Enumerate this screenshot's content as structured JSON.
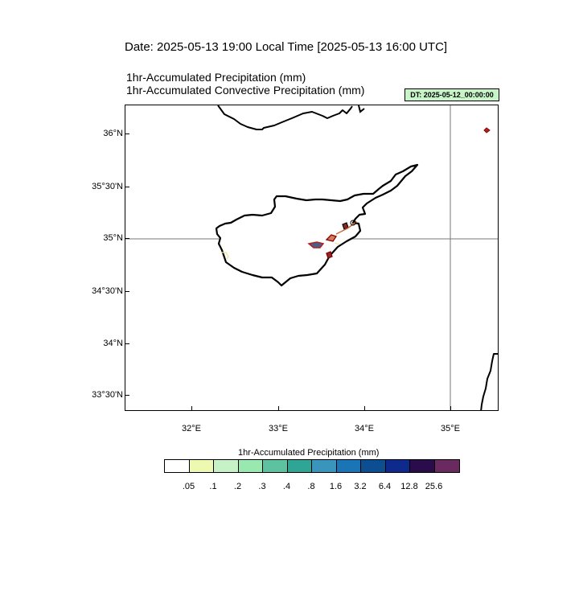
{
  "header": {
    "date_line": "Date: 2025-05-13  19:00 Local Time [2025-05-13  16:00 UTC]",
    "title_1": "1hr-Accumulated Precipitation   (mm)",
    "title_2": "1hr-Accumulated Convective Precipitation   (mm)",
    "dt_badge": "DT: 2025-05-12_00:00:00"
  },
  "map": {
    "lat_labels": [
      "36°N",
      "35°30'N",
      "35°N",
      "34°30'N",
      "34°N",
      "33°30'N"
    ],
    "lon_labels": [
      "32°E",
      "33°E",
      "34°E",
      "35°E"
    ],
    "extent": {
      "lon_min": 31.2,
      "lon_max": 35.55,
      "lat_min": 33.35,
      "lat_max": 36.27
    },
    "gridlines": {
      "lon": 35.0,
      "lat": 35.0
    },
    "coastline_color": "#000000"
  },
  "colorbar": {
    "title": "1hr-Accumulated Precipitation  (mm)",
    "colors": [
      "#ffffff",
      "#edf8b1",
      "#c7f2c7",
      "#98e8b0",
      "#5cc2a0",
      "#2ea595",
      "#3a95bd",
      "#1a75b6",
      "#0b4f92",
      "#0e2a8c",
      "#2a0c4a",
      "#6a2a60"
    ],
    "labels": [
      ".05",
      ".1",
      ".2",
      ".3",
      ".4",
      ".8",
      "1.6",
      "3.2",
      "6.4",
      "12.8",
      "25.6"
    ]
  }
}
